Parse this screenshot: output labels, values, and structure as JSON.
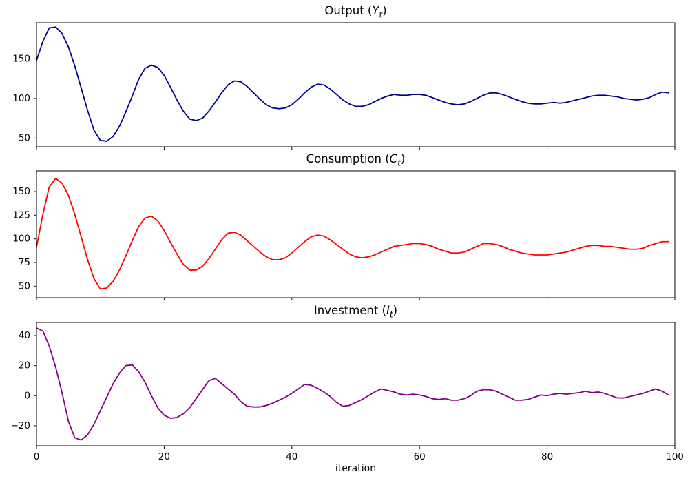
{
  "figure": {
    "background_color": "#ffffff"
  },
  "chart_data": [
    {
      "id": "output",
      "type": "line",
      "title": "Output (Yₜ)",
      "title_prefix": "Output (",
      "title_var": "Y",
      "title_sub": "t",
      "title_suffix": ")",
      "color": "#00008B",
      "x_start": 0,
      "x_step": 1,
      "xlim": [
        0,
        100
      ],
      "ylim": [
        39,
        195.5
      ],
      "xticks": [
        0,
        20,
        40,
        60,
        80,
        100
      ],
      "yticks": [
        50,
        100,
        150
      ],
      "show_xticklabels": false,
      "xlabel": "",
      "grid": false,
      "legend": "none",
      "values": [
        148,
        172,
        189,
        190,
        182,
        165,
        141,
        113,
        85,
        60,
        47,
        46,
        52,
        65,
        83,
        103,
        124,
        138,
        142,
        139,
        129,
        114,
        98,
        84,
        74,
        72,
        75,
        84,
        95,
        107,
        117,
        122,
        121,
        115,
        107,
        99,
        92,
        88,
        87,
        88,
        92,
        99,
        107,
        114,
        118,
        117,
        112,
        105,
        98,
        93,
        90,
        90,
        92,
        96,
        100,
        103,
        105,
        104,
        104,
        105,
        105,
        104,
        101,
        98,
        95,
        93,
        92,
        93,
        96,
        100,
        104,
        107,
        107,
        105,
        102,
        99,
        96,
        94,
        93,
        93,
        94,
        95,
        94,
        95,
        97,
        99,
        101,
        103,
        104,
        104,
        103,
        102,
        100,
        99,
        98,
        99,
        101,
        105,
        108,
        107
      ]
    },
    {
      "id": "consumption",
      "type": "line",
      "title": "Consumption (Cₜ)",
      "title_prefix": "Consumption (",
      "title_var": "C",
      "title_sub": "t",
      "title_suffix": ")",
      "color": "#FF0000",
      "x_start": 0,
      "x_step": 1,
      "xlim": [
        0,
        100
      ],
      "ylim": [
        37.8,
        171.9
      ],
      "xticks": [
        0,
        20,
        40,
        60,
        80,
        100
      ],
      "yticks": [
        50,
        75,
        100,
        125,
        150
      ],
      "show_xticklabels": false,
      "xlabel": "",
      "grid": false,
      "legend": "none",
      "values": [
        91,
        126,
        155,
        164,
        159,
        146,
        126,
        102,
        78,
        58,
        47,
        48,
        55,
        67,
        82,
        98,
        113,
        122,
        124,
        119,
        109,
        96,
        84,
        73,
        67,
        67,
        71,
        79,
        89,
        99,
        106,
        107,
        104,
        98,
        92,
        86,
        81,
        78,
        78,
        80,
        85,
        91,
        97,
        102,
        104,
        103,
        99,
        94,
        89,
        84,
        81,
        80,
        81,
        83,
        86,
        89,
        92,
        93,
        94,
        95,
        95,
        94,
        92,
        89,
        87,
        85,
        85,
        86,
        89,
        92,
        95,
        95,
        94,
        92,
        89,
        87,
        85,
        84,
        83,
        83,
        83,
        84,
        85,
        86,
        88,
        90,
        92,
        93,
        93,
        92,
        92,
        91,
        90,
        89,
        89,
        90,
        93,
        95,
        97,
        97
      ]
    },
    {
      "id": "investment",
      "type": "line",
      "title": "Investment (Iₜ)",
      "title_prefix": "Investment (",
      "title_var": "I",
      "title_sub": "t",
      "title_suffix": ")",
      "color": "#800080",
      "x_start": 0,
      "x_step": 1,
      "xlim": [
        0,
        100
      ],
      "ylim": [
        -33.3,
        48.7
      ],
      "xticks": [
        0,
        20,
        40,
        60,
        80,
        100
      ],
      "yticks": [
        -20,
        0,
        20,
        40
      ],
      "show_xticklabels": true,
      "xlabel": "iteration",
      "grid": false,
      "legend": "none",
      "values": [
        45,
        43,
        33,
        19,
        2,
        -17,
        -28,
        -29.5,
        -26,
        -19,
        -10,
        -1,
        8,
        15,
        20,
        20.5,
        16,
        9,
        0,
        -8,
        -13,
        -15,
        -14.5,
        -12,
        -8,
        -2,
        4,
        10,
        11.5,
        8,
        4.5,
        1,
        -4,
        -7,
        -7.5,
        -7.5,
        -6.5,
        -5,
        -3,
        -1,
        1.5,
        4.5,
        7.5,
        7,
        5,
        2.5,
        -0.5,
        -4.5,
        -7,
        -6.5,
        -4.5,
        -2.5,
        0,
        2.5,
        4.5,
        3.5,
        2.5,
        1,
        0.5,
        1,
        0.5,
        -0.5,
        -2,
        -2.5,
        -2,
        -3,
        -3,
        -2,
        0,
        3,
        4,
        4,
        3,
        1,
        -1,
        -3,
        -3,
        -2.5,
        -1,
        0.5,
        0,
        1,
        1.5,
        1,
        1.5,
        2,
        3,
        2,
        2.5,
        1.5,
        0,
        -1.5,
        -1.5,
        -0.5,
        0.5,
        1.5,
        3,
        4.5,
        3,
        0.5
      ]
    }
  ]
}
